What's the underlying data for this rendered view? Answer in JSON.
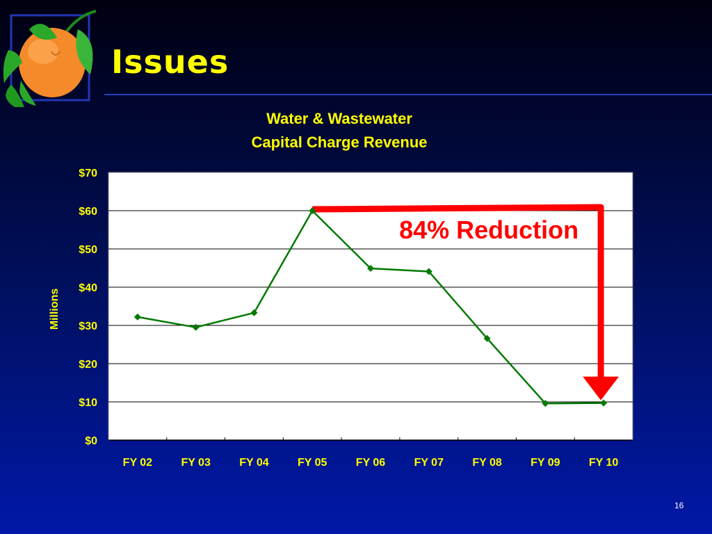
{
  "slide": {
    "title": "Issues",
    "page_number": "16",
    "logo_icon": "orange-with-leaves-icon"
  },
  "chart_data": {
    "type": "line",
    "title_lines": [
      "Water & Wastewater",
      "Capital Charge Revenue"
    ],
    "categories": [
      "FY 02",
      "FY 03",
      "FY 04",
      "FY 05",
      "FY 06",
      "FY 07",
      "FY 08",
      "FY 09",
      "FY 10"
    ],
    "values": [
      32.2,
      29.5,
      33.3,
      60.0,
      44.9,
      44.1,
      26.6,
      9.6,
      9.7
    ],
    "ylabel": "Millions",
    "xlabel": "",
    "ylim": [
      0,
      70
    ],
    "yticks": [
      0,
      10,
      20,
      30,
      40,
      50,
      60,
      70
    ],
    "ytick_labels": [
      "$0",
      "$10",
      "$20",
      "$30",
      "$40",
      "$50",
      "$60",
      "$70"
    ],
    "grid": true,
    "line_color": "#007a00",
    "annotation": {
      "text": "84% Reduction",
      "color": "#ff0000",
      "from_category": "FY 05",
      "to_category": "FY 10"
    }
  }
}
